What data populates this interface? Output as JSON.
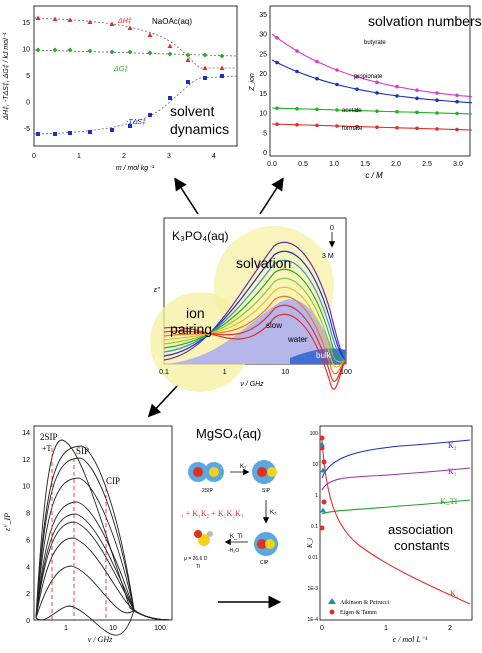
{
  "panel_top_left": {
    "inset_label": "NaOAc(aq)",
    "ylabel": "ΔH‡, -TΔS‡, ΔG‡ / kJ mol⁻¹",
    "xlabel": "m / mol kg⁻¹",
    "caption_line1": "solvent",
    "caption_line2": "dynamics",
    "series_labels": {
      "dH": "ΔH‡",
      "dG": "ΔG‡",
      "TdS": "-TΔS‡"
    },
    "yticks": [
      "-5",
      "0",
      "5",
      "10",
      "15"
    ],
    "xticks": [
      "0",
      "1",
      "2",
      "3",
      "4"
    ],
    "colors": {
      "dH": "#e0302a",
      "dG": "#2fa82f",
      "TdS": "#1d2fc8"
    }
  },
  "panel_top_right": {
    "caption": "solvation numbers",
    "ylabel": "Z_ion",
    "xlabel": "c / M",
    "yticks": [
      "0",
      "5",
      "10",
      "15",
      "20",
      "25",
      "30",
      "35"
    ],
    "xticks": [
      "0.0",
      "0.5",
      "1.0",
      "1.5",
      "2.0",
      "2.5",
      "3.0"
    ],
    "series": [
      {
        "name": "butyrate",
        "color": "#d63cc9"
      },
      {
        "name": "propionate",
        "color": "#1d2fc8"
      },
      {
        "name": "acetate",
        "color": "#22b022"
      },
      {
        "name": "formate",
        "color": "#e0302a"
      }
    ]
  },
  "panel_middle": {
    "title": "K₃PO₄(aq)",
    "ylabel": "ε″",
    "xlabel": "ν / GHz",
    "xticks": [
      "0.1",
      "1",
      "10",
      "100"
    ],
    "conc_top": "0",
    "conc_bottom": "3 M",
    "bubble_solvation": "solvation",
    "bubble_ion_line1": "ion",
    "bubble_ion_line2": "pairing",
    "region_slow": "slow",
    "region_water": "water",
    "region_bulk": "bulk"
  },
  "panel_bottom_left": {
    "labels": [
      "2SIP",
      "+T",
      "SIP",
      "CIP"
    ],
    "ylabel": "ε″_IP",
    "xlabel": "ν / GHz",
    "yticks": [
      "0",
      "2",
      "4",
      "6",
      "8",
      "10",
      "12",
      "14"
    ],
    "xticks": [
      "1",
      "10",
      "100"
    ]
  },
  "panel_bottom_center": {
    "title": "MgSO₄(aq)",
    "equation": "K(c) = K₁ + K₁K₂ + K₁K₂K₃",
    "species": [
      "2SIP",
      "SIP",
      "CIP",
      "TI"
    ],
    "note": "μ = 26.6 D",
    "arrow_labels": [
      "K₁",
      "K₂",
      "K₃",
      "K_TI"
    ],
    "water_label": "-H₂O"
  },
  "panel_bottom_right": {
    "caption_line1": "association",
    "caption_line2": "constants",
    "xlabel": "c / mol L⁻¹",
    "ylabel": "K_i",
    "yticks": [
      "100",
      "10",
      "1",
      "0.1",
      "0.01",
      "1E-3",
      "1E-4"
    ],
    "xticks": [
      "0",
      "1",
      "2"
    ],
    "curve_labels": [
      "K₂",
      "K₃",
      "K_TI",
      "K₁"
    ],
    "legend": [
      "Atkinson & Petrucci",
      "Eigen & Tamm"
    ],
    "colors": {
      "K2": "#1d2fc8",
      "K3": "#9a2fb0",
      "KTI": "#22a02a",
      "K1": "#e0302a"
    }
  }
}
